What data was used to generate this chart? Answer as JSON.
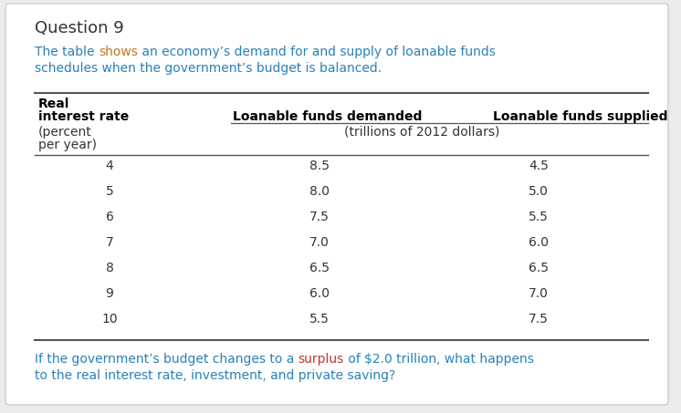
{
  "title": "Question 9",
  "subtitle_line1": [
    {
      "text": "The table ",
      "color": "#2980b9"
    },
    {
      "text": "shows",
      "color": "#c07820"
    },
    {
      "text": " an economy’s demand for and supply of loanable funds",
      "color": "#2980b9"
    }
  ],
  "subtitle_line2": [
    {
      "text": "schedules when the government’s budget is balanced.",
      "color": "#2980b9"
    }
  ],
  "header_col1_line1": "Real",
  "header_col1_line2": "interest rate",
  "header_col2": "Loanable funds demanded",
  "header_col3": "Loanable funds supplied",
  "subheader_col1_line1": "(percent",
  "subheader_col1_line2": "per year)",
  "subheader_col23": "(trillions of 2012 dollars)",
  "interest_rates": [
    4,
    5,
    6,
    7,
    8,
    9,
    10
  ],
  "loanable_demanded": [
    8.5,
    8.0,
    7.5,
    7.0,
    6.5,
    6.0,
    5.5
  ],
  "loanable_supplied": [
    4.5,
    5.0,
    5.5,
    6.0,
    6.5,
    7.0,
    7.5
  ],
  "footer_line1": [
    {
      "text": "If the government’s budget changes to a ",
      "color": "#2980b9"
    },
    {
      "text": "surplus",
      "color": "#c0392b"
    },
    {
      "text": " of ",
      "color": "#2980b9"
    },
    {
      "text": "$2.0 trillion",
      "color": "#2980b9"
    },
    {
      "text": ", what happens",
      "color": "#2980b9"
    }
  ],
  "footer_line2": [
    {
      "text": "to the real interest rate, investment, and private saving?",
      "color": "#2980b9"
    }
  ],
  "background_color": "#ebebeb",
  "card_color": "#ffffff",
  "title_color": "#333333",
  "text_color": "#333333"
}
